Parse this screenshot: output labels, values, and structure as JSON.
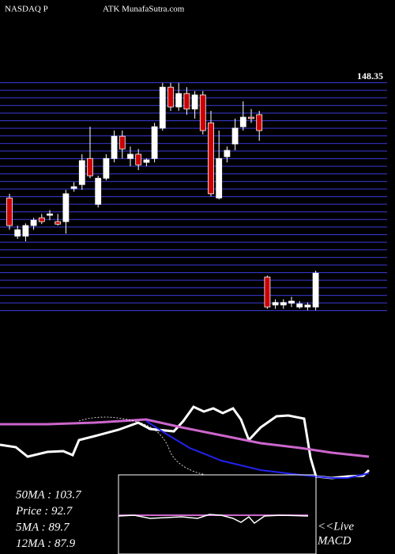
{
  "chart_data": {
    "type": "candlestick",
    "title_left": "NASDAQ P",
    "title_right": "ATK MunafaSutra.com",
    "last_price_label": {
      "value": 148.35,
      "label": "148.35"
    },
    "ylim": [
      82.2,
      148.35
    ],
    "up_color": "#ffffff",
    "down_color": "#cc0000",
    "open": [
      114.0,
      103.2,
      103.2,
      106.2,
      108.4,
      109.1,
      107.3,
      107.3,
      116.7,
      117.8,
      125.2,
      112.2,
      119.6,
      125.2,
      131.5,
      125.2,
      126.4,
      124.1,
      125.2,
      133.8,
      145.4,
      139.8,
      143.6,
      139.2,
      143.2,
      135.3,
      114.0,
      125.7,
      129.3,
      134.2,
      136.9,
      137.6,
      91.6,
      83.7,
      83.7,
      84.2,
      83.1,
      83.1,
      83.1
    ],
    "high": [
      115.2,
      106.2,
      106.8,
      108.4,
      109.5,
      110.6,
      109.5,
      116.3,
      118.5,
      126.4,
      134.2,
      120.3,
      126.4,
      133.1,
      133.1,
      128.6,
      127.9,
      125.2,
      135.3,
      146.6,
      146.6,
      146.6,
      145.4,
      144.3,
      144.3,
      138.7,
      133.1,
      128.6,
      136.5,
      141.4,
      139.2,
      138.7,
      92.0,
      85.3,
      85.3,
      86.0,
      84.8,
      84.4,
      93.4
    ],
    "low": [
      105.0,
      102.4,
      101.7,
      105.0,
      106.6,
      107.7,
      106.2,
      103.9,
      115.8,
      116.3,
      119.6,
      111.3,
      119.0,
      124.1,
      125.2,
      123.0,
      121.9,
      123.0,
      124.1,
      133.1,
      138.7,
      138.7,
      137.6,
      136.5,
      132.0,
      114.5,
      113.6,
      124.1,
      127.5,
      133.1,
      135.3,
      130.2,
      82.6,
      82.6,
      82.6,
      83.1,
      82.6,
      82.2,
      82.2
    ],
    "close": [
      106.2,
      105.0,
      106.2,
      107.7,
      107.3,
      109.5,
      106.6,
      115.2,
      117.2,
      124.6,
      120.3,
      119.6,
      125.2,
      131.5,
      127.9,
      126.4,
      123.4,
      124.8,
      134.2,
      145.4,
      139.8,
      143.6,
      139.2,
      143.2,
      133.1,
      115.2,
      125.2,
      127.5,
      133.8,
      136.9,
      136.5,
      133.1,
      83.1,
      84.4,
      84.4,
      84.8,
      84.0,
      83.7,
      92.7
    ],
    "stats": [
      "50MA : 103.7",
      "Price  : 92.7",
      "5MA  : 89.7",
      "12MA : 87.9"
    ],
    "live_label": "<<Live",
    "macd_label": "MACD"
  }
}
